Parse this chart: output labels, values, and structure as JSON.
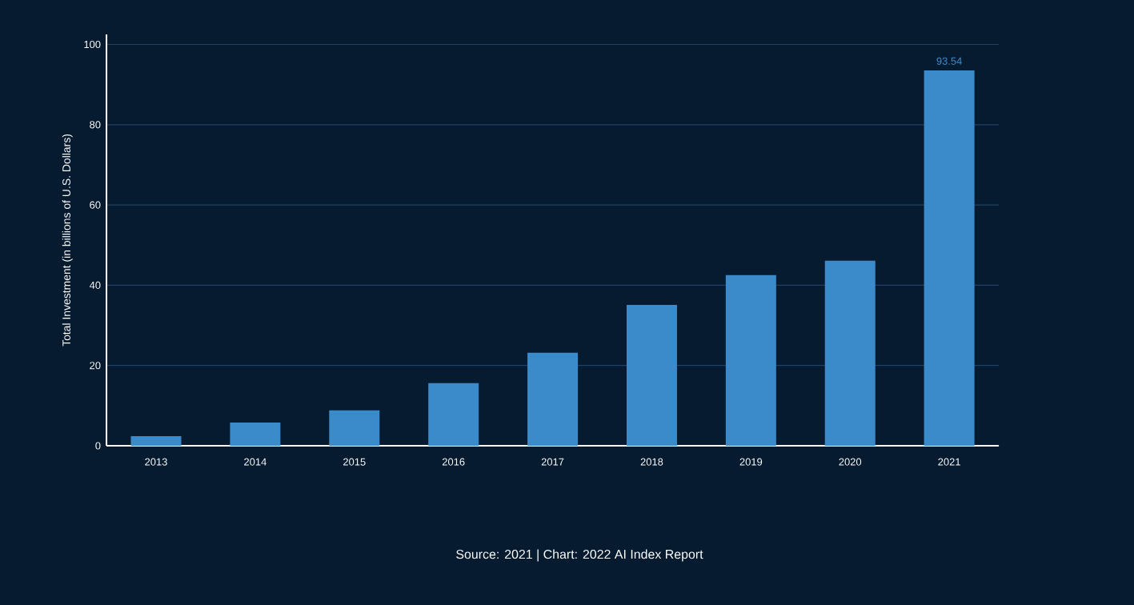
{
  "chart_data": {
    "type": "bar",
    "ylabel": "Total Investment (in billions of U.S. Dollars)",
    "categories": [
      "2013",
      "2014",
      "2015",
      "2016",
      "2017",
      "2018",
      "2019",
      "2020",
      "2021"
    ],
    "values": [
      2.4,
      5.8,
      8.8,
      15.6,
      23.2,
      35.1,
      42.5,
      46.1,
      93.54
    ],
    "value_labels": [
      null,
      null,
      null,
      null,
      null,
      null,
      null,
      null,
      "93.54"
    ],
    "color": "#3b8bcb",
    "ylim": [
      0,
      102.5
    ],
    "yticks": [
      0,
      20,
      40,
      60,
      80,
      100
    ],
    "grid": "y",
    "annotations": [
      "Source: 2021 | Chart: 2022 AI Index Report"
    ]
  }
}
